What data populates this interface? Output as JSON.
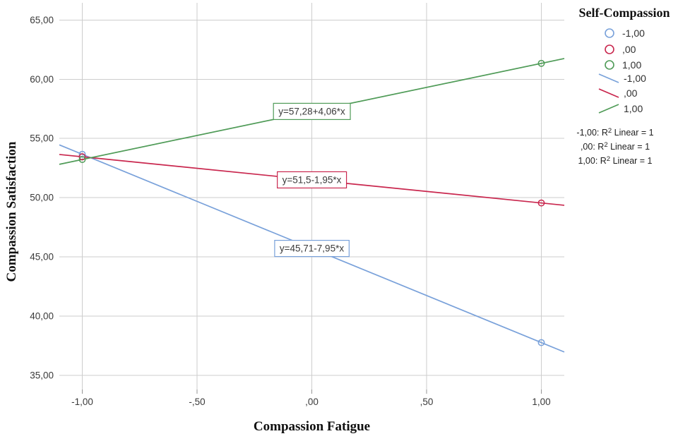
{
  "chart_data": {
    "type": "line",
    "title": "",
    "xlabel": "Compassion Fatigue",
    "ylabel": "Compassion Satisfaction",
    "legend_title": "Self-Compassion",
    "xlim": [
      -1.1,
      1.1
    ],
    "ylim": [
      33.8,
      66.45
    ],
    "grid": true,
    "legend_position": "right",
    "x_ticks": [
      {
        "value": -1.0,
        "label": "-1,00"
      },
      {
        "value": -0.5,
        "label": "-,50"
      },
      {
        "value": 0.0,
        "label": ",00"
      },
      {
        "value": 0.5,
        "label": ",50"
      },
      {
        "value": 1.0,
        "label": "1,00"
      }
    ],
    "y_ticks": [
      {
        "value": 65,
        "label": "65,00"
      },
      {
        "value": 60,
        "label": "60,00"
      },
      {
        "value": 55,
        "label": "55,00"
      },
      {
        "value": 50,
        "label": "50,00"
      },
      {
        "value": 45,
        "label": "45,00"
      },
      {
        "value": 40,
        "label": "40,00"
      },
      {
        "value": 35,
        "label": "35,00"
      }
    ],
    "series": [
      {
        "name": "-1,00",
        "color": "#79A1DA",
        "intercept": 45.71,
        "slope": -7.95,
        "equation": "y=45,71-7,95*x",
        "points": [
          {
            "x": -1,
            "y": 53.66
          },
          {
            "x": 1,
            "y": 37.76
          }
        ]
      },
      {
        "name": ",00",
        "color": "#C9274E",
        "intercept": 51.5,
        "slope": -1.95,
        "equation": "y=51,5-1,95*x",
        "points": [
          {
            "x": -1,
            "y": 53.45
          },
          {
            "x": 1,
            "y": 49.55
          }
        ]
      },
      {
        "name": "1,00",
        "color": "#4F9B57",
        "intercept": 57.28,
        "slope": 4.06,
        "equation": "y=57,28+4,06*x",
        "points": [
          {
            "x": -1,
            "y": 53.22
          },
          {
            "x": 1,
            "y": 61.34
          }
        ]
      }
    ],
    "annotations": [
      {
        "prefix": "-1,00: R",
        "sup": "2",
        "suffix": " Linear = 1"
      },
      {
        "prefix": ",00: R",
        "sup": "2",
        "suffix": " Linear = 1"
      },
      {
        "prefix": "1,00: R",
        "sup": "2",
        "suffix": " Linear = 1"
      }
    ]
  }
}
